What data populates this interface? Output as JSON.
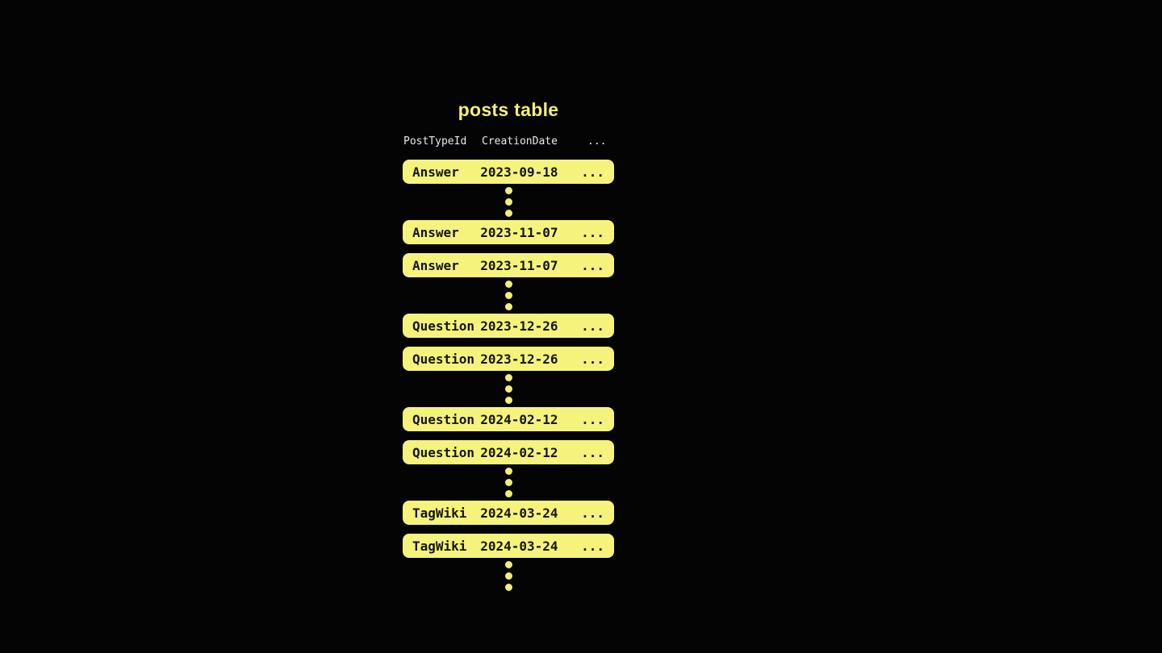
{
  "title": "posts table",
  "colors": {
    "background": "#040404",
    "accent_yellow": "#F2EF78",
    "row_fill": "#F5F37C",
    "row_text": "#151515",
    "header_text": "#E9E9E4"
  },
  "table": {
    "columns": [
      "PostTypeId",
      "CreationDate",
      "..."
    ],
    "ellipsis_dot_count": 3,
    "groups": [
      {
        "rows": [
          {
            "type": "Answer",
            "date": "2023-09-18",
            "more": "..."
          }
        ]
      },
      {
        "rows": [
          {
            "type": "Answer",
            "date": "2023-11-07",
            "more": "..."
          },
          {
            "type": "Answer",
            "date": "2023-11-07",
            "more": "..."
          }
        ]
      },
      {
        "rows": [
          {
            "type": "Question",
            "date": "2023-12-26",
            "more": "..."
          },
          {
            "type": "Question",
            "date": "2023-12-26",
            "more": "..."
          }
        ]
      },
      {
        "rows": [
          {
            "type": "Question",
            "date": "2024-02-12",
            "more": "..."
          },
          {
            "type": "Question",
            "date": "2024-02-12",
            "more": "..."
          }
        ]
      },
      {
        "rows": [
          {
            "type": "TagWiki",
            "date": "2024-03-24",
            "more": "..."
          },
          {
            "type": "TagWiki",
            "date": "2024-03-24",
            "more": "..."
          }
        ]
      }
    ]
  }
}
